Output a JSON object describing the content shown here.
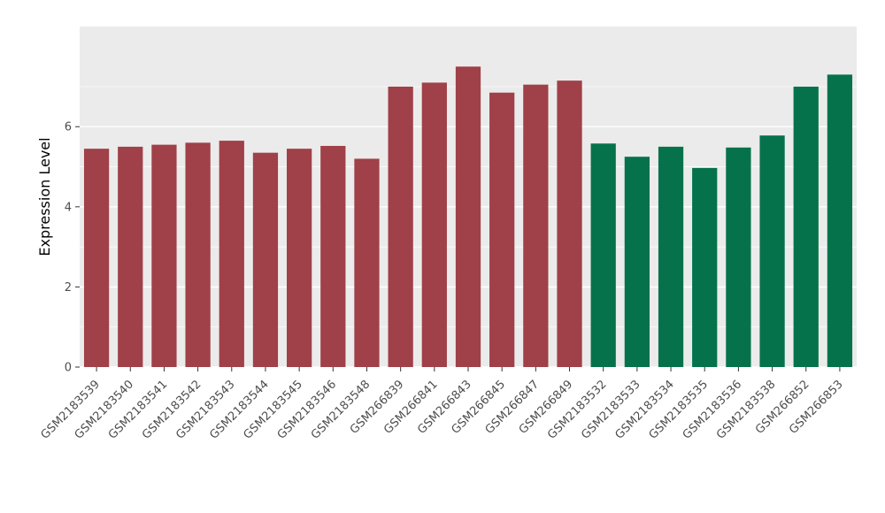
{
  "chart_data": {
    "type": "bar",
    "title": "",
    "xlabel": "",
    "ylabel": "Expression Level",
    "ylim": [
      0,
      8.5
    ],
    "yticks": [
      0,
      2,
      4,
      6
    ],
    "yticks_minor": [
      1,
      3,
      5,
      7
    ],
    "grid": true,
    "legend_position": "none",
    "panel_background": "#EBEBEB",
    "grid_color": "#FFFFFF",
    "axis_text_color": "#4D4D4D",
    "axis_title_color": "#000000",
    "group_colors": {
      "group1": "#A04048",
      "group2": "#06724C"
    },
    "bars": [
      {
        "label": "GSM2183539",
        "value": 5.45,
        "group": "group1"
      },
      {
        "label": "GSM2183540",
        "value": 5.5,
        "group": "group1"
      },
      {
        "label": "GSM2183541",
        "value": 5.55,
        "group": "group1"
      },
      {
        "label": "GSM2183542",
        "value": 5.6,
        "group": "group1"
      },
      {
        "label": "GSM2183543",
        "value": 5.65,
        "group": "group1"
      },
      {
        "label": "GSM2183544",
        "value": 5.35,
        "group": "group1"
      },
      {
        "label": "GSM2183545",
        "value": 5.45,
        "group": "group1"
      },
      {
        "label": "GSM2183546",
        "value": 5.52,
        "group": "group1"
      },
      {
        "label": "GSM2183548",
        "value": 5.2,
        "group": "group1"
      },
      {
        "label": "GSM266839",
        "value": 7.0,
        "group": "group1"
      },
      {
        "label": "GSM266841",
        "value": 7.1,
        "group": "group1"
      },
      {
        "label": "GSM266843",
        "value": 7.5,
        "group": "group1"
      },
      {
        "label": "GSM266845",
        "value": 6.85,
        "group": "group1"
      },
      {
        "label": "GSM266847",
        "value": 7.05,
        "group": "group1"
      },
      {
        "label": "GSM266849",
        "value": 7.15,
        "group": "group1"
      },
      {
        "label": "GSM2183532",
        "value": 5.58,
        "group": "group2"
      },
      {
        "label": "GSM2183533",
        "value": 5.25,
        "group": "group2"
      },
      {
        "label": "GSM2183534",
        "value": 5.5,
        "group": "group2"
      },
      {
        "label": "GSM2183535",
        "value": 4.97,
        "group": "group2"
      },
      {
        "label": "GSM2183536",
        "value": 5.48,
        "group": "group2"
      },
      {
        "label": "GSM2183538",
        "value": 5.78,
        "group": "group2"
      },
      {
        "label": "GSM266852",
        "value": 7.0,
        "group": "group2"
      },
      {
        "label": "GSM266853",
        "value": 7.3,
        "group": "group2"
      }
    ]
  }
}
